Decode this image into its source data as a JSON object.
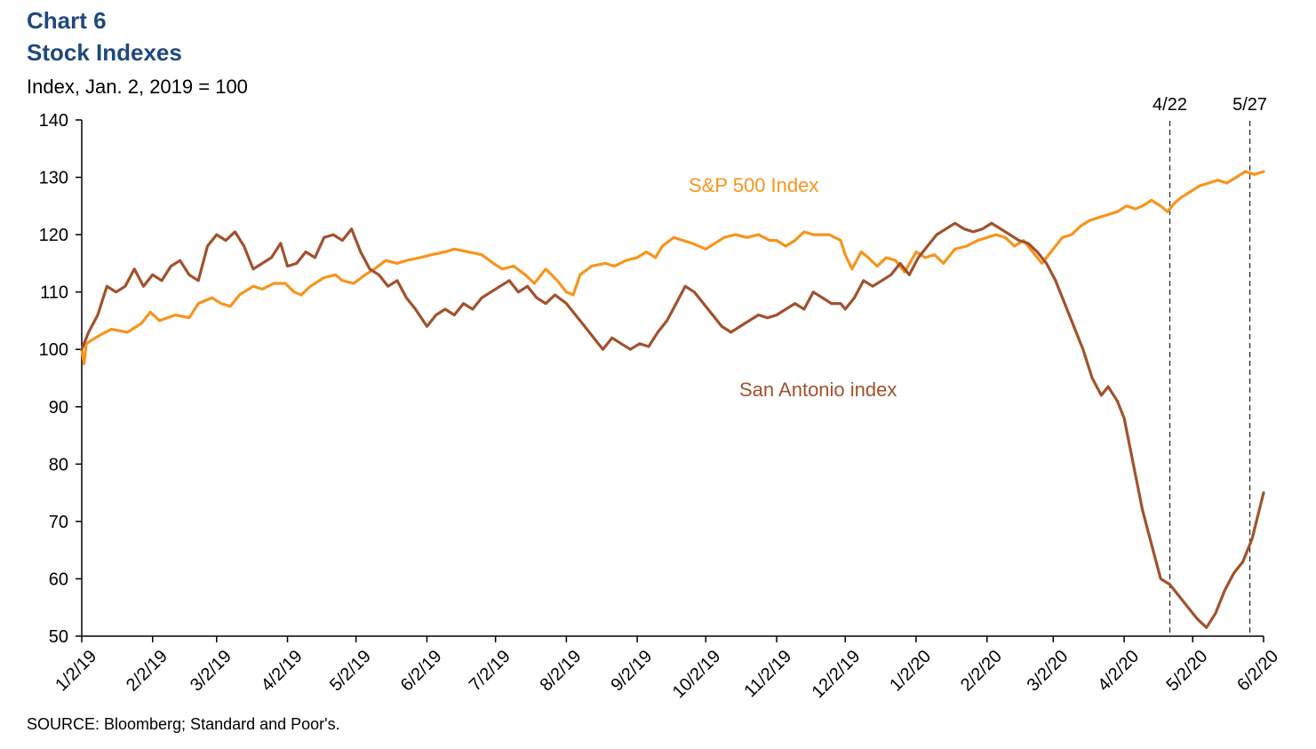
{
  "header": {
    "chart_number": "Chart 6",
    "title": "Stock Indexes",
    "subtitle": "Index, Jan. 2, 2019 = 100"
  },
  "footer": {
    "source": "SOURCE: Bloomberg; Standard and Poor's."
  },
  "colors": {
    "sp500": "#f7941d",
    "san_antonio": "#a0522d",
    "title": "#1f497d"
  },
  "chart_data": {
    "type": "line",
    "title": "Stock Indexes",
    "ylabel": "Index, Jan. 2, 2019 = 100",
    "ylim": [
      50,
      140
    ],
    "yticks": [
      50,
      60,
      70,
      80,
      90,
      100,
      110,
      120,
      130,
      140
    ],
    "xlim": [
      "2019-01-02",
      "2020-06-02"
    ],
    "xtick_labels": [
      "1/2/19",
      "2/2/19",
      "3/2/19",
      "4/2/19",
      "5/2/19",
      "6/2/19",
      "7/2/19",
      "8/2/19",
      "9/2/19",
      "10/2/19",
      "11/2/19",
      "12/2/19",
      "1/2/20",
      "2/2/20",
      "3/2/20",
      "4/2/20",
      "5/2/20",
      "6/2/20"
    ],
    "xtick_dates": [
      "2019-01-02",
      "2019-02-02",
      "2019-03-02",
      "2019-04-02",
      "2019-05-02",
      "2019-06-02",
      "2019-07-02",
      "2019-08-02",
      "2019-09-02",
      "2019-10-02",
      "2019-11-02",
      "2019-12-02",
      "2020-01-02",
      "2020-02-02",
      "2020-03-02",
      "2020-04-02",
      "2020-05-02",
      "2020-06-02"
    ],
    "grid": false,
    "annotations": [
      {
        "label": "4/22",
        "date": "2020-04-22",
        "style": "dashed-vertical"
      },
      {
        "label": "5/27",
        "date": "2020-05-27",
        "style": "dashed-vertical"
      }
    ],
    "series": [
      {
        "name": "S&P 500 Index",
        "color": "#f7941d",
        "points": [
          [
            "2019-01-02",
            100
          ],
          [
            "2019-01-03",
            97.5
          ],
          [
            "2019-01-04",
            101
          ],
          [
            "2019-01-10",
            102.5
          ],
          [
            "2019-01-15",
            103.5
          ],
          [
            "2019-01-22",
            103
          ],
          [
            "2019-01-28",
            104.5
          ],
          [
            "2019-02-01",
            106.5
          ],
          [
            "2019-02-05",
            105
          ],
          [
            "2019-02-12",
            106
          ],
          [
            "2019-02-18",
            105.5
          ],
          [
            "2019-02-22",
            108
          ],
          [
            "2019-02-28",
            109
          ],
          [
            "2019-03-04",
            108
          ],
          [
            "2019-03-08",
            107.5
          ],
          [
            "2019-03-12",
            109.5
          ],
          [
            "2019-03-18",
            111
          ],
          [
            "2019-03-22",
            110.5
          ],
          [
            "2019-03-27",
            111.5
          ],
          [
            "2019-04-01",
            111.5
          ],
          [
            "2019-04-05",
            110
          ],
          [
            "2019-04-08",
            109.5
          ],
          [
            "2019-04-12",
            111
          ],
          [
            "2019-04-18",
            112.5
          ],
          [
            "2019-04-23",
            113
          ],
          [
            "2019-04-26",
            112
          ],
          [
            "2019-05-01",
            111.5
          ],
          [
            "2019-05-06",
            113
          ],
          [
            "2019-05-10",
            114
          ],
          [
            "2019-05-15",
            115.5
          ],
          [
            "2019-05-20",
            115
          ],
          [
            "2019-05-24",
            115.5
          ],
          [
            "2019-05-30",
            116
          ],
          [
            "2019-06-04",
            116.5
          ],
          [
            "2019-06-10",
            117
          ],
          [
            "2019-06-14",
            117.5
          ],
          [
            "2019-06-20",
            117
          ],
          [
            "2019-06-26",
            116.5
          ],
          [
            "2019-07-01",
            115
          ],
          [
            "2019-07-05",
            114
          ],
          [
            "2019-07-10",
            114.5
          ],
          [
            "2019-07-15",
            113
          ],
          [
            "2019-07-19",
            111.5
          ],
          [
            "2019-07-24",
            114
          ],
          [
            "2019-07-29",
            112
          ],
          [
            "2019-08-02",
            110
          ],
          [
            "2019-08-05",
            109.5
          ],
          [
            "2019-08-08",
            113
          ],
          [
            "2019-08-13",
            114.5
          ],
          [
            "2019-08-19",
            115
          ],
          [
            "2019-08-23",
            114.5
          ],
          [
            "2019-08-28",
            115.5
          ],
          [
            "2019-09-02",
            116
          ],
          [
            "2019-09-06",
            117
          ],
          [
            "2019-09-10",
            116
          ],
          [
            "2019-09-13",
            118
          ],
          [
            "2019-09-18",
            119.5
          ],
          [
            "2019-09-22",
            119
          ],
          [
            "2019-09-26",
            118.5
          ],
          [
            "2019-10-02",
            117.5
          ],
          [
            "2019-10-06",
            118.5
          ],
          [
            "2019-10-10",
            119.5
          ],
          [
            "2019-10-15",
            120
          ],
          [
            "2019-10-20",
            119.5
          ],
          [
            "2019-10-25",
            120
          ],
          [
            "2019-10-30",
            119
          ],
          [
            "2019-11-02",
            119
          ],
          [
            "2019-11-06",
            118
          ],
          [
            "2019-11-10",
            119
          ],
          [
            "2019-11-14",
            120.5
          ],
          [
            "2019-11-18",
            120
          ],
          [
            "2019-11-25",
            120
          ],
          [
            "2019-11-30",
            119
          ],
          [
            "2019-12-02",
            116.5
          ],
          [
            "2019-12-05",
            114
          ],
          [
            "2019-12-09",
            117
          ],
          [
            "2019-12-12",
            116
          ],
          [
            "2019-12-16",
            114.5
          ],
          [
            "2019-12-20",
            116
          ],
          [
            "2019-12-24",
            115.5
          ],
          [
            "2019-12-28",
            113.5
          ],
          [
            "2020-01-02",
            117
          ],
          [
            "2020-01-06",
            116
          ],
          [
            "2020-01-10",
            116.5
          ],
          [
            "2020-01-14",
            115
          ],
          [
            "2020-01-19",
            117.5
          ],
          [
            "2020-01-24",
            118
          ],
          [
            "2020-01-29",
            119
          ],
          [
            "2020-02-02",
            119.5
          ],
          [
            "2020-02-06",
            120
          ],
          [
            "2020-02-10",
            119.5
          ],
          [
            "2020-02-14",
            118
          ],
          [
            "2020-02-18",
            119
          ],
          [
            "2020-02-22",
            117
          ],
          [
            "2020-02-26",
            115
          ],
          [
            "2020-02-29",
            116.5
          ],
          [
            "2020-03-03",
            118
          ],
          [
            "2020-03-06",
            119.5
          ],
          [
            "2020-03-10",
            120
          ],
          [
            "2020-03-14",
            121.5
          ],
          [
            "2020-03-18",
            122.5
          ],
          [
            "2020-03-22",
            123
          ],
          [
            "2020-03-26",
            123.5
          ],
          [
            "2020-03-30",
            124
          ],
          [
            "2020-04-03",
            125
          ],
          [
            "2020-04-07",
            124.5
          ],
          [
            "2020-04-10",
            125
          ],
          [
            "2020-04-14",
            126
          ],
          [
            "2020-04-18",
            125
          ],
          [
            "2020-04-21",
            124
          ],
          [
            "2020-04-24",
            125.5
          ],
          [
            "2020-04-27",
            126.5
          ],
          [
            "2020-05-01",
            127.5
          ],
          [
            "2020-05-05",
            128.5
          ],
          [
            "2020-05-09",
            129
          ],
          [
            "2020-05-13",
            129.5
          ],
          [
            "2020-05-17",
            129
          ],
          [
            "2020-05-21",
            130
          ],
          [
            "2020-05-25",
            131
          ],
          [
            "2020-05-29",
            130.5
          ],
          [
            "2020-06-02",
            131
          ]
        ]
      },
      {
        "name": "San Antonio index",
        "color": "#a0522d",
        "points": [
          [
            "2019-01-02",
            100
          ],
          [
            "2019-01-05",
            103
          ],
          [
            "2019-01-09",
            106
          ],
          [
            "2019-01-13",
            111
          ],
          [
            "2019-01-17",
            110
          ],
          [
            "2019-01-21",
            111
          ],
          [
            "2019-01-25",
            114
          ],
          [
            "2019-01-29",
            111
          ],
          [
            "2019-02-02",
            113
          ],
          [
            "2019-02-06",
            112
          ],
          [
            "2019-02-10",
            114.5
          ],
          [
            "2019-02-14",
            115.5
          ],
          [
            "2019-02-18",
            113
          ],
          [
            "2019-02-22",
            112
          ],
          [
            "2019-02-26",
            118
          ],
          [
            "2019-03-02",
            120
          ],
          [
            "2019-03-06",
            119
          ],
          [
            "2019-03-10",
            120.5
          ],
          [
            "2019-03-14",
            118
          ],
          [
            "2019-03-18",
            114
          ],
          [
            "2019-03-22",
            115
          ],
          [
            "2019-03-26",
            116
          ],
          [
            "2019-03-30",
            118.5
          ],
          [
            "2019-04-02",
            114.5
          ],
          [
            "2019-04-06",
            115
          ],
          [
            "2019-04-10",
            117
          ],
          [
            "2019-04-14",
            116
          ],
          [
            "2019-04-18",
            119.5
          ],
          [
            "2019-04-22",
            120
          ],
          [
            "2019-04-26",
            119
          ],
          [
            "2019-04-30",
            121
          ],
          [
            "2019-05-04",
            117
          ],
          [
            "2019-05-08",
            114
          ],
          [
            "2019-05-12",
            113
          ],
          [
            "2019-05-16",
            111
          ],
          [
            "2019-05-20",
            112
          ],
          [
            "2019-05-24",
            109
          ],
          [
            "2019-05-28",
            107
          ],
          [
            "2019-06-02",
            104
          ],
          [
            "2019-06-06",
            106
          ],
          [
            "2019-06-10",
            107
          ],
          [
            "2019-06-14",
            106
          ],
          [
            "2019-06-18",
            108
          ],
          [
            "2019-06-22",
            107
          ],
          [
            "2019-06-26",
            109
          ],
          [
            "2019-06-30",
            110
          ],
          [
            "2019-07-04",
            111
          ],
          [
            "2019-07-08",
            112
          ],
          [
            "2019-07-12",
            110
          ],
          [
            "2019-07-16",
            111
          ],
          [
            "2019-07-20",
            109
          ],
          [
            "2019-07-24",
            108
          ],
          [
            "2019-07-28",
            109.5
          ],
          [
            "2019-08-02",
            108
          ],
          [
            "2019-08-06",
            106
          ],
          [
            "2019-08-10",
            104
          ],
          [
            "2019-08-14",
            102
          ],
          [
            "2019-08-18",
            100
          ],
          [
            "2019-08-22",
            102
          ],
          [
            "2019-08-26",
            101
          ],
          [
            "2019-08-30",
            100
          ],
          [
            "2019-09-03",
            101
          ],
          [
            "2019-09-07",
            100.5
          ],
          [
            "2019-09-11",
            103
          ],
          [
            "2019-09-15",
            105
          ],
          [
            "2019-09-19",
            108
          ],
          [
            "2019-09-23",
            111
          ],
          [
            "2019-09-27",
            110
          ],
          [
            "2019-10-01",
            108
          ],
          [
            "2019-10-05",
            106
          ],
          [
            "2019-10-09",
            104
          ],
          [
            "2019-10-13",
            103
          ],
          [
            "2019-10-17",
            104
          ],
          [
            "2019-10-21",
            105
          ],
          [
            "2019-10-25",
            106
          ],
          [
            "2019-10-29",
            105.5
          ],
          [
            "2019-11-02",
            106
          ],
          [
            "2019-11-06",
            107
          ],
          [
            "2019-11-10",
            108
          ],
          [
            "2019-11-14",
            107
          ],
          [
            "2019-11-18",
            110
          ],
          [
            "2019-11-22",
            109
          ],
          [
            "2019-11-26",
            108
          ],
          [
            "2019-11-30",
            108
          ],
          [
            "2019-12-02",
            107
          ],
          [
            "2019-12-06",
            109
          ],
          [
            "2019-12-10",
            112
          ],
          [
            "2019-12-14",
            111
          ],
          [
            "2019-12-18",
            112
          ],
          [
            "2019-12-22",
            113
          ],
          [
            "2019-12-26",
            115
          ],
          [
            "2019-12-30",
            113
          ],
          [
            "2020-01-03",
            116
          ],
          [
            "2020-01-07",
            118
          ],
          [
            "2020-01-11",
            120
          ],
          [
            "2020-01-15",
            121
          ],
          [
            "2020-01-19",
            122
          ],
          [
            "2020-01-23",
            121
          ],
          [
            "2020-01-27",
            120.5
          ],
          [
            "2020-01-31",
            121
          ],
          [
            "2020-02-04",
            122
          ],
          [
            "2020-02-08",
            121
          ],
          [
            "2020-02-12",
            120
          ],
          [
            "2020-02-16",
            119
          ],
          [
            "2020-02-20",
            118.5
          ],
          [
            "2020-02-24",
            117
          ],
          [
            "2020-02-28",
            115
          ],
          [
            "2020-03-03",
            112
          ],
          [
            "2020-03-07",
            108
          ],
          [
            "2020-03-11",
            104
          ],
          [
            "2020-03-15",
            100
          ],
          [
            "2020-03-19",
            95
          ],
          [
            "2020-03-23",
            92
          ],
          [
            "2020-03-26",
            93.5
          ],
          [
            "2020-03-30",
            91
          ],
          [
            "2020-04-02",
            88
          ],
          [
            "2020-04-06",
            80
          ],
          [
            "2020-04-10",
            72
          ],
          [
            "2020-04-14",
            66
          ],
          [
            "2020-04-18",
            60
          ],
          [
            "2020-04-22",
            59
          ],
          [
            "2020-04-26",
            57
          ],
          [
            "2020-04-30",
            55
          ],
          [
            "2020-05-04",
            53
          ],
          [
            "2020-05-08",
            51.5
          ],
          [
            "2020-05-12",
            54
          ],
          [
            "2020-05-16",
            58
          ],
          [
            "2020-05-20",
            61
          ],
          [
            "2020-05-24",
            63
          ],
          [
            "2020-05-28",
            67
          ],
          [
            "2020-06-02",
            75
          ]
        ]
      }
    ]
  }
}
